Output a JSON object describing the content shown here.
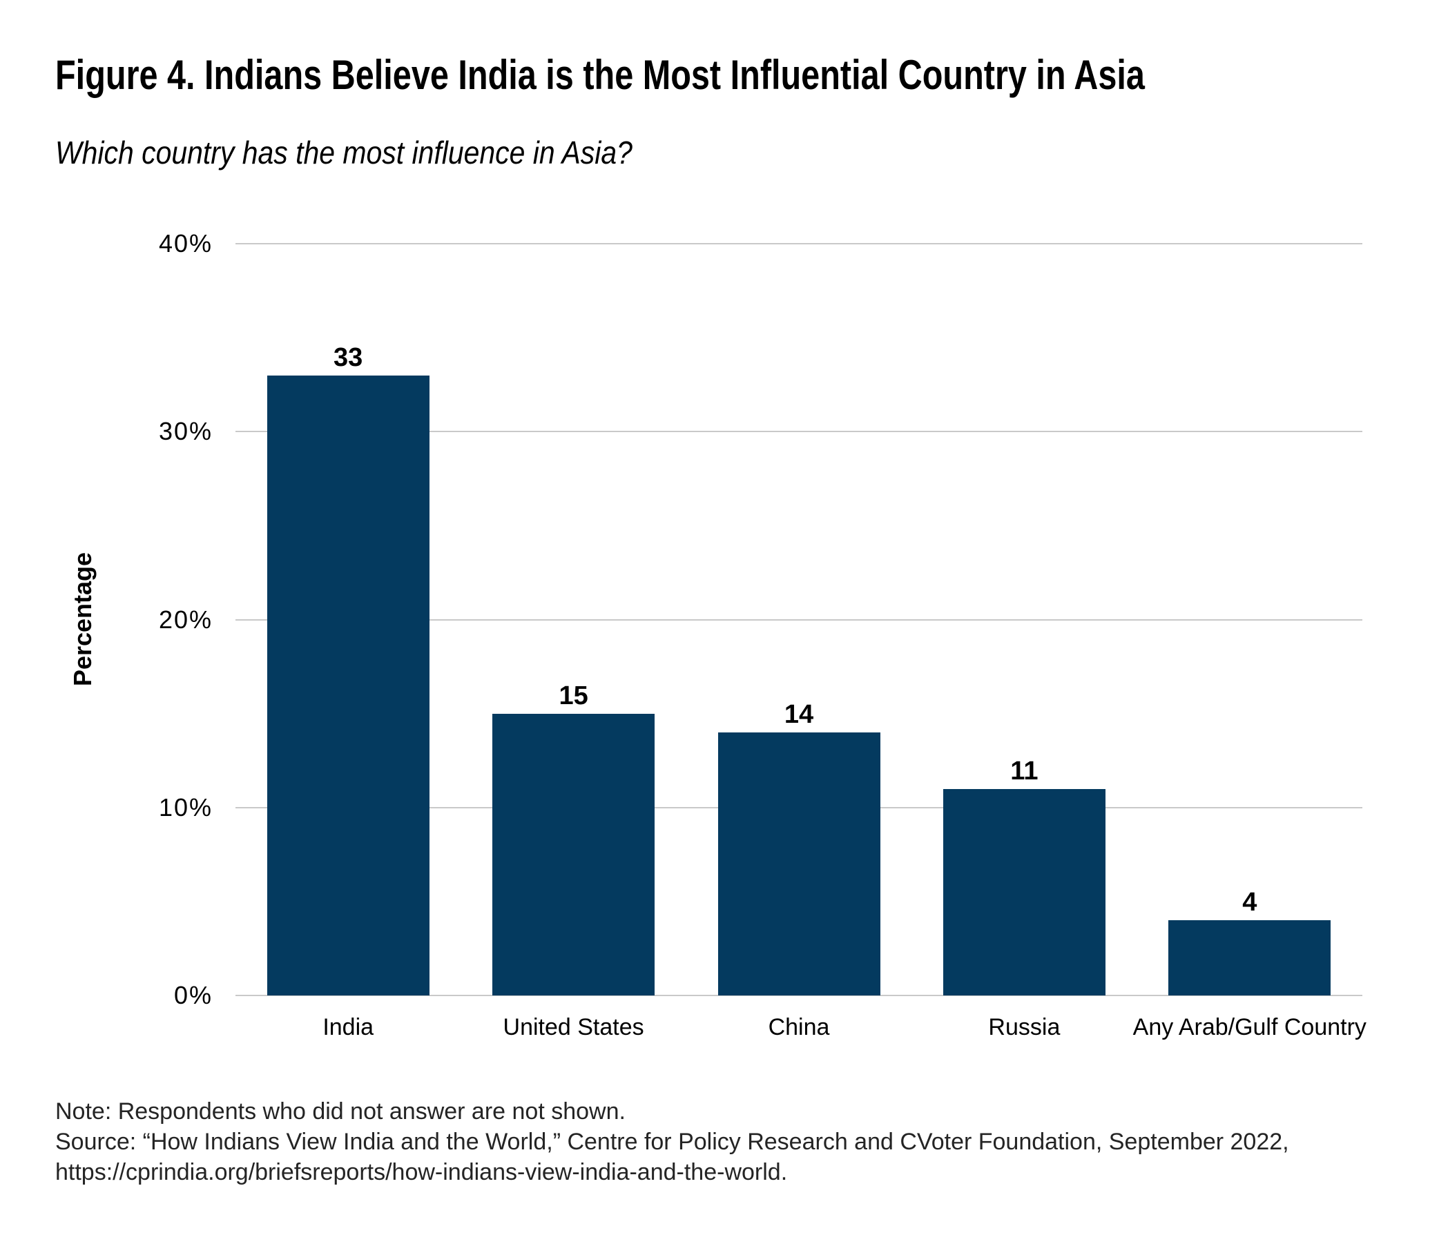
{
  "title": "Figure 4. Indians Believe India is the Most Influential Country in Asia",
  "subtitle": "Which country has the most influence in Asia?",
  "note": "Note: Respondents who did not answer are not shown.",
  "source": "Source: “How Indians View India and the World,” Centre for Policy Research and CVoter Foundation, September 2022,",
  "source_url": "https://cprindia.org/briefsreports/how-indians-view-india-and-the-world.",
  "chart_data": {
    "type": "bar",
    "title": "Figure 4. Indians Believe India is the Most Influential Country in Asia",
    "subtitle": "Which country has the most influence in Asia?",
    "categories": [
      "India",
      "United States",
      "China",
      "Russia",
      "Any Arab/Gulf Country"
    ],
    "values": [
      33,
      15,
      14,
      11,
      4
    ],
    "xlabel": "",
    "ylabel": "Percentage",
    "ylim": [
      0,
      40
    ],
    "yticks": [
      0,
      10,
      20,
      30,
      40
    ],
    "ytick_labels": [
      "0%",
      "10%",
      "20%",
      "30%",
      "40%"
    ],
    "grid": true,
    "legend": false,
    "bar_color": "#043A5F",
    "gridline_color": "#C9C9C9"
  }
}
